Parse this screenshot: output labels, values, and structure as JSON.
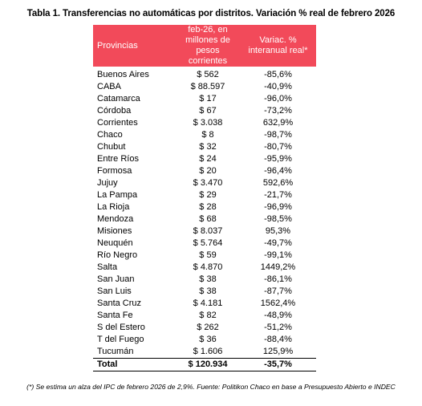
{
  "title": "Tabla 1. Transferencias no automáticas por distritos. Variación % real de febrero 2026",
  "table": {
    "headers": {
      "provincias": "Provincias",
      "valor": "feb-26, en millones de pesos corrientes",
      "variacion": "Variac. % interanual real*"
    },
    "rows": [
      {
        "provincia": "Buenos Aires",
        "valor": "$ 562",
        "variacion": "-85,6%"
      },
      {
        "provincia": "CABA",
        "valor": "$ 88.597",
        "variacion": "-40,9%"
      },
      {
        "provincia": "Catamarca",
        "valor": "$ 17",
        "variacion": "-96,0%"
      },
      {
        "provincia": "Córdoba",
        "valor": "$ 67",
        "variacion": "-73,2%"
      },
      {
        "provincia": "Corrientes",
        "valor": "$ 3.038",
        "variacion": "632,9%"
      },
      {
        "provincia": "Chaco",
        "valor": "$ 8",
        "variacion": "-98,7%"
      },
      {
        "provincia": "Chubut",
        "valor": "$ 32",
        "variacion": "-80,7%"
      },
      {
        "provincia": "Entre Ríos",
        "valor": "$ 24",
        "variacion": "-95,9%"
      },
      {
        "provincia": "Formosa",
        "valor": "$ 20",
        "variacion": "-96,4%"
      },
      {
        "provincia": "Jujuy",
        "valor": "$ 3.470",
        "variacion": "592,6%"
      },
      {
        "provincia": "La Pampa",
        "valor": "$ 29",
        "variacion": "-21,7%"
      },
      {
        "provincia": "La Rioja",
        "valor": "$ 28",
        "variacion": "-96,9%"
      },
      {
        "provincia": "Mendoza",
        "valor": "$ 68",
        "variacion": "-98,5%"
      },
      {
        "provincia": "Misiones",
        "valor": "$ 8.037",
        "variacion": "95,3%"
      },
      {
        "provincia": "Neuquén",
        "valor": "$ 5.764",
        "variacion": "-49,7%"
      },
      {
        "provincia": "Río Negro",
        "valor": "$ 59",
        "variacion": "-99,1%"
      },
      {
        "provincia": "Salta",
        "valor": "$ 4.870",
        "variacion": "1449,2%"
      },
      {
        "provincia": "San Juan",
        "valor": "$ 38",
        "variacion": "-86,1%"
      },
      {
        "provincia": "San Luis",
        "valor": "$ 38",
        "variacion": "-87,7%"
      },
      {
        "provincia": "Santa Cruz",
        "valor": "$ 4.181",
        "variacion": "1562,4%"
      },
      {
        "provincia": "Santa Fe",
        "valor": "$ 82",
        "variacion": "-48,9%"
      },
      {
        "provincia": "S del Estero",
        "valor": "$ 262",
        "variacion": "-51,2%"
      },
      {
        "provincia": "T del Fuego",
        "valor": "$ 36",
        "variacion": "-88,4%"
      },
      {
        "provincia": "Tucumán",
        "valor": "$ 1.606",
        "variacion": "125,9%"
      }
    ],
    "total": {
      "provincia": "Total",
      "valor": "$ 120.934",
      "variacion": "-35,7%"
    }
  },
  "footnote": "(*) Se estima un alza del IPC de febrero 2026 de 2,9%. Fuente: Politikon Chaco en base a Presupuesto Abierto e INDEC",
  "colors": {
    "header_background": "#f24a5a",
    "header_text": "#ffffff"
  }
}
